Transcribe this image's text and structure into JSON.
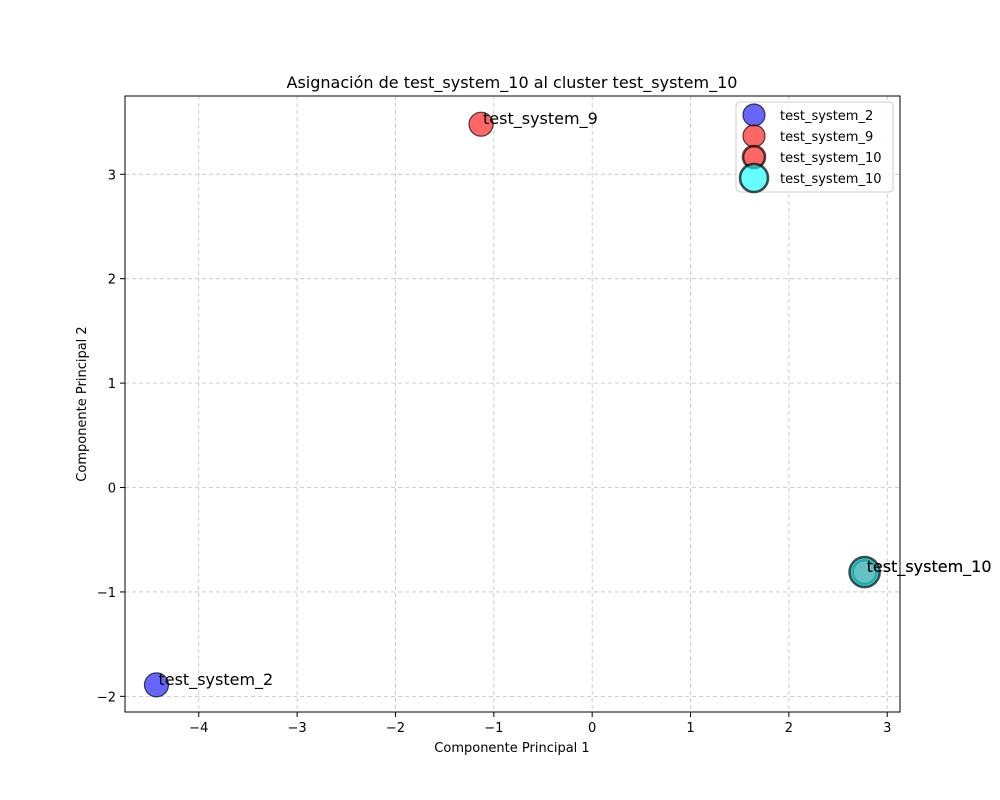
{
  "chart_data": {
    "type": "scatter",
    "title": "Asignación de test_system_10 al cluster test_system_10",
    "xlabel": "Componente Principal 1",
    "ylabel": "Componente Principal 2",
    "xlim": [
      -4.75,
      3.13
    ],
    "ylim": [
      -2.15,
      3.75
    ],
    "xticks": [
      -4,
      -3,
      -2,
      -1,
      0,
      1,
      2,
      3
    ],
    "yticks": [
      -2,
      -1,
      0,
      1,
      2,
      3
    ],
    "xtick_labels": [
      "−4",
      "−3",
      "−2",
      "−1",
      "0",
      "1",
      "2",
      "3"
    ],
    "ytick_labels": [
      "−2",
      "−1",
      "0",
      "1",
      "2",
      "3"
    ],
    "grid": true,
    "legend_position": "top-right",
    "series": [
      {
        "name": "test_system_2",
        "color": "#0000ff",
        "marker": "circle",
        "points": [
          {
            "x": -4.43,
            "y": -1.89,
            "label": "test_system_2"
          }
        ]
      },
      {
        "name": "test_system_9",
        "color": "#ff0000",
        "marker": "circle",
        "points": [
          {
            "x": -1.13,
            "y": 3.48,
            "label": "test_system_9"
          }
        ]
      },
      {
        "name": "test_system_10",
        "color": "#ff0000",
        "marker": "circle-bold",
        "points": [
          {
            "x": 2.77,
            "y": -0.81,
            "label": "test_system_10"
          }
        ]
      },
      {
        "name": "test_system_10",
        "color": "#00ffff",
        "marker": "circle-large",
        "points": [
          {
            "x": 2.77,
            "y": -0.81,
            "label": "test_system_10"
          }
        ]
      }
    ]
  }
}
